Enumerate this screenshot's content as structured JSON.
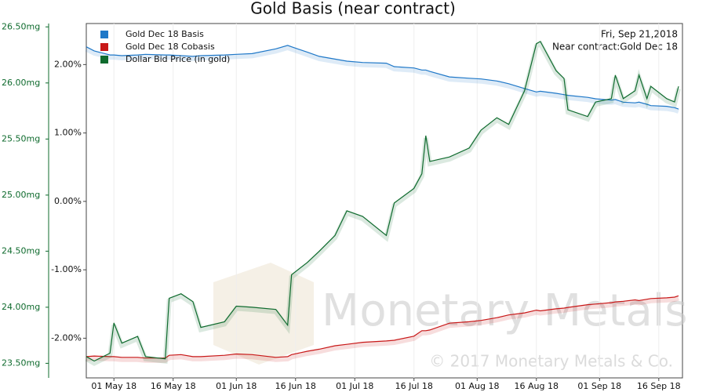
{
  "chart_data": {
    "type": "line",
    "title": "Gold Basis (near contract)",
    "annotations": [
      "Fri, Sep 21,2018",
      "Near contract:Gold Dec 18"
    ],
    "watermark": [
      "Monetary Metals",
      "© 2017 Monetary Metals & Co."
    ],
    "legend": "top-left",
    "grid": true,
    "x": [
      "2018-04-24",
      "2018-04-26",
      "2018-04-30",
      "2018-05-01",
      "2018-05-03",
      "2018-05-07",
      "2018-05-09",
      "2018-05-14",
      "2018-05-15",
      "2018-05-18",
      "2018-05-21",
      "2018-05-23",
      "2018-05-29",
      "2018-06-01",
      "2018-06-05",
      "2018-06-11",
      "2018-06-14",
      "2018-06-15",
      "2018-06-19",
      "2018-06-22",
      "2018-06-26",
      "2018-06-29",
      "2018-07-03",
      "2018-07-09",
      "2018-07-11",
      "2018-07-16",
      "2018-07-18",
      "2018-07-19",
      "2018-07-20",
      "2018-07-25",
      "2018-07-30",
      "2018-08-02",
      "2018-08-06",
      "2018-08-09",
      "2018-08-13",
      "2018-08-16",
      "2018-08-17",
      "2018-08-21",
      "2018-08-23",
      "2018-08-24",
      "2018-08-29",
      "2018-08-31",
      "2018-09-04",
      "2018-09-05",
      "2018-09-07",
      "2018-09-10",
      "2018-09-11",
      "2018-09-13",
      "2018-09-14",
      "2018-09-18",
      "2018-09-20",
      "2018-09-21"
    ],
    "xlim": [
      "2018-04-24",
      "2018-09-22"
    ],
    "xticks": [
      {
        "value": "2018-05-01",
        "label": "01 May 18"
      },
      {
        "value": "2018-05-16",
        "label": "16 May 18"
      },
      {
        "value": "2018-06-01",
        "label": "01 Jun 18"
      },
      {
        "value": "2018-06-16",
        "label": "16 Jun 18"
      },
      {
        "value": "2018-07-01",
        "label": "01 Jul 18"
      },
      {
        "value": "2018-07-16",
        "label": "16 Jul 18"
      },
      {
        "value": "2018-08-01",
        "label": "01 Aug 18"
      },
      {
        "value": "2018-08-16",
        "label": "16 Aug 18"
      },
      {
        "value": "2018-09-01",
        "label": "01 Sep 18"
      },
      {
        "value": "2018-09-16",
        "label": "16 Sep 18"
      }
    ],
    "ylim": [
      23.37,
      26.53
    ],
    "yticks": [
      {
        "value": 23.5,
        "label": "23.50mg"
      },
      {
        "value": 24,
        "label": "24.00mg"
      },
      {
        "value": 24.5,
        "label": "24.50mg"
      },
      {
        "value": 25,
        "label": "25.00mg"
      },
      {
        "value": 25.5,
        "label": "25.50mg"
      },
      {
        "value": 26,
        "label": "26.00mg"
      },
      {
        "value": 26.5,
        "label": "26.50mg"
      }
    ],
    "y2lim": [
      -2.58,
      2.6
    ],
    "y2ticks": [
      {
        "value": -2,
        "label": "-2.00%"
      },
      {
        "value": -1,
        "label": "-1.00%"
      },
      {
        "value": 0,
        "label": "0.00%"
      },
      {
        "value": 1,
        "label": "1.00%"
      },
      {
        "value": 2,
        "label": "2.00%"
      }
    ],
    "series": [
      {
        "name": "Gold Dec 18 Basis",
        "color": "#1f78c8",
        "axis": "y2",
        "values": [
          2.26,
          2.2,
          2.14,
          2.14,
          2.13,
          2.14,
          2.15,
          2.14,
          2.14,
          2.13,
          2.12,
          2.13,
          2.14,
          2.15,
          2.16,
          2.23,
          2.28,
          2.26,
          2.18,
          2.12,
          2.08,
          2.05,
          2.03,
          2.02,
          1.97,
          1.95,
          1.92,
          1.92,
          1.9,
          1.82,
          1.8,
          1.79,
          1.76,
          1.72,
          1.65,
          1.6,
          1.61,
          1.58,
          1.56,
          1.55,
          1.52,
          1.5,
          1.48,
          1.49,
          1.45,
          1.44,
          1.45,
          1.42,
          1.4,
          1.39,
          1.37,
          1.35
        ]
      },
      {
        "name": "Gold Dec 18 Cobasis",
        "color": "#c81818",
        "axis": "y2",
        "values": [
          -2.27,
          -2.26,
          -2.27,
          -2.27,
          -2.28,
          -2.28,
          -2.29,
          -2.29,
          -2.25,
          -2.24,
          -2.27,
          -2.27,
          -2.25,
          -2.23,
          -2.24,
          -2.28,
          -2.27,
          -2.24,
          -2.19,
          -2.16,
          -2.11,
          -2.09,
          -2.06,
          -2.04,
          -2.03,
          -1.97,
          -1.89,
          -1.89,
          -1.88,
          -1.78,
          -1.76,
          -1.74,
          -1.7,
          -1.66,
          -1.63,
          -1.59,
          -1.6,
          -1.57,
          -1.56,
          -1.55,
          -1.51,
          -1.5,
          -1.48,
          -1.47,
          -1.46,
          -1.44,
          -1.45,
          -1.43,
          -1.42,
          -1.41,
          -1.4,
          -1.38
        ]
      },
      {
        "name": "Dollar Bid Price (in gold)",
        "color": "#0f6b2e",
        "axis": "y",
        "values": [
          23.56,
          23.52,
          23.59,
          23.86,
          23.68,
          23.74,
          23.56,
          23.54,
          24.08,
          24.12,
          24.05,
          23.82,
          23.87,
          24.01,
          24.0,
          23.98,
          23.84,
          24.29,
          24.4,
          24.5,
          24.64,
          24.86,
          24.81,
          24.64,
          24.93,
          25.06,
          25.19,
          25.53,
          25.3,
          25.34,
          25.42,
          25.58,
          25.69,
          25.63,
          25.93,
          26.35,
          26.37,
          26.11,
          26.04,
          25.76,
          25.7,
          25.83,
          25.86,
          26.07,
          25.86,
          25.93,
          26.07,
          25.86,
          25.97,
          25.86,
          25.83,
          25.97
        ]
      }
    ]
  }
}
